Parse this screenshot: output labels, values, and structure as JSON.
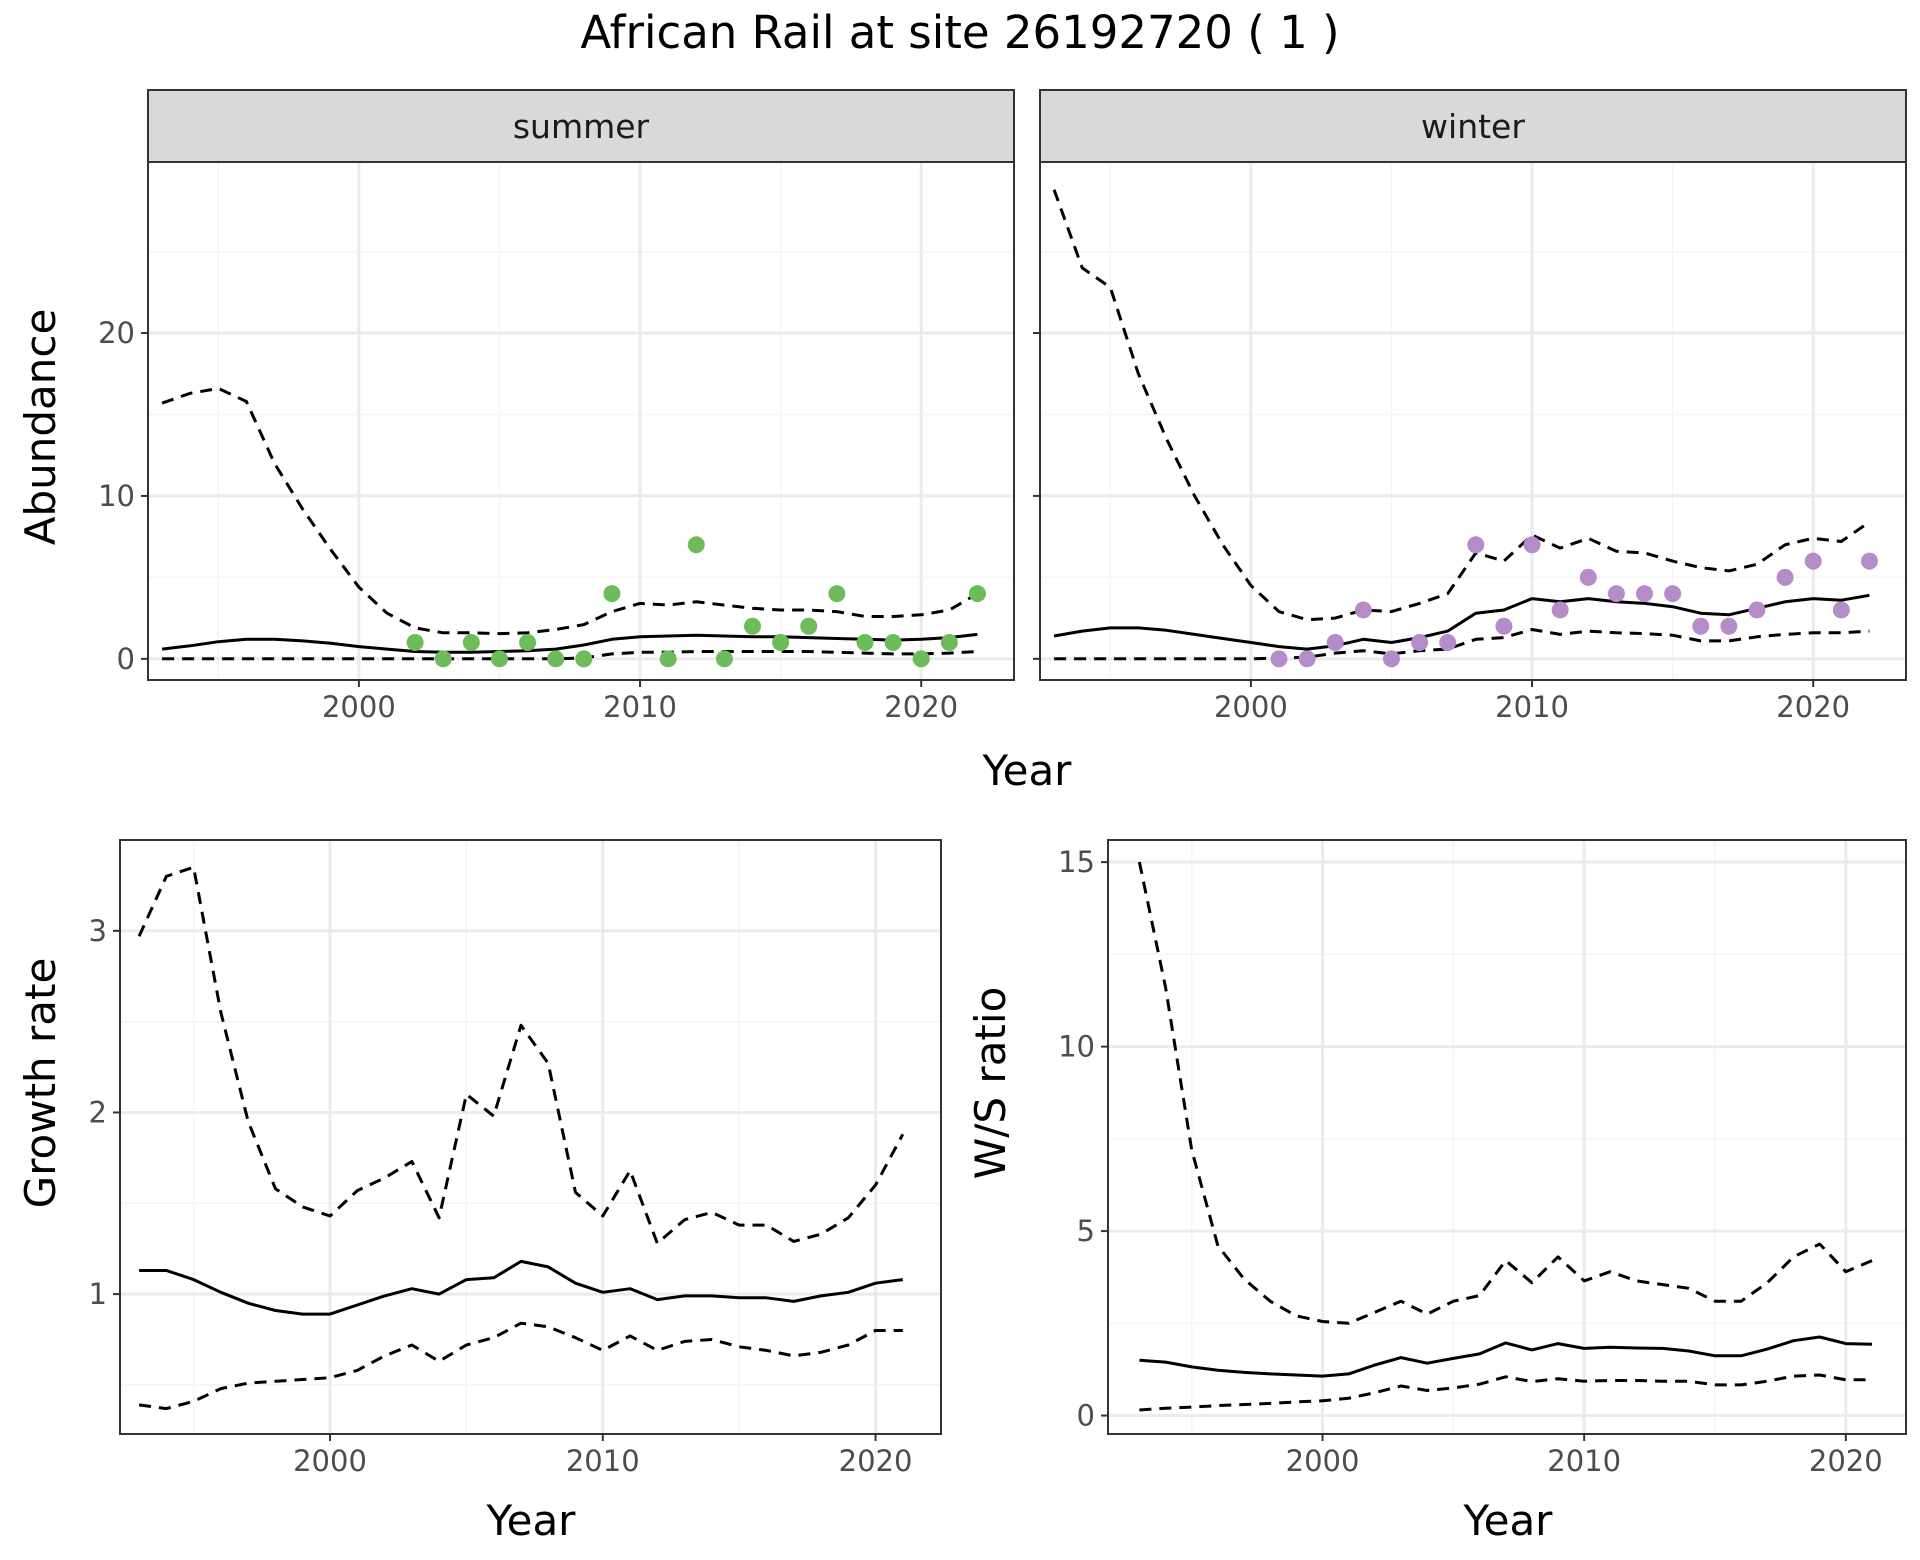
{
  "title": "African Rail at site 26192720 ( 1 )",
  "colors": {
    "summer_points": "#6dbb5a",
    "winter_points": "#b48cc8",
    "lines": "#000000",
    "grid_major": "#ebebeb",
    "grid_minor": "#f4f4f4",
    "strip_fill": "#d9d9d9",
    "panel_border": "#333333"
  },
  "chart_data": [
    {
      "type": "scatter",
      "facet": "summer",
      "xlabel": "Year",
      "ylabel": "Abundance",
      "xlim": [
        1992.5,
        2023.3
      ],
      "ylim": [
        -1.3,
        30.5
      ],
      "xticks": [
        2000,
        2010,
        2020
      ],
      "yticks": [
        0,
        10,
        20
      ],
      "grid": true,
      "points": {
        "x": [
          2002,
          2003,
          2004,
          2005,
          2006,
          2007,
          2008,
          2009,
          2011,
          2012,
          2013,
          2014,
          2015,
          2016,
          2017,
          2018,
          2019,
          2020,
          2021,
          2022
        ],
        "y": [
          1,
          0,
          1,
          0,
          1,
          0,
          0,
          4,
          0,
          7,
          0,
          2,
          1,
          2,
          4,
          1,
          1,
          0,
          1,
          4
        ]
      },
      "x": [
        1993,
        1994,
        1995,
        1996,
        1997,
        1998,
        1999,
        2000,
        2001,
        2002,
        2003,
        2004,
        2005,
        2006,
        2007,
        2008,
        2009,
        2010,
        2011,
        2012,
        2013,
        2014,
        2015,
        2016,
        2017,
        2018,
        2019,
        2020,
        2021,
        2022
      ],
      "series": [
        {
          "style": "solid",
          "values": [
            0.6,
            0.8,
            1.05,
            1.2,
            1.2,
            1.1,
            0.95,
            0.75,
            0.6,
            0.45,
            0.4,
            0.4,
            0.45,
            0.5,
            0.6,
            0.85,
            1.2,
            1.35,
            1.4,
            1.45,
            1.4,
            1.35,
            1.35,
            1.3,
            1.25,
            1.2,
            1.15,
            1.2,
            1.3,
            1.5
          ]
        },
        {
          "style": "dashed",
          "values": [
            15.7,
            16.3,
            16.6,
            15.8,
            12.0,
            9.2,
            6.7,
            4.4,
            2.8,
            1.9,
            1.6,
            1.6,
            1.55,
            1.6,
            1.8,
            2.1,
            2.9,
            3.4,
            3.3,
            3.5,
            3.3,
            3.1,
            3.0,
            3.0,
            2.9,
            2.6,
            2.6,
            2.7,
            3.0,
            4.0
          ]
        },
        {
          "style": "dashed",
          "values": [
            0,
            0,
            0,
            0,
            0,
            0,
            0,
            0,
            0,
            0,
            0,
            0,
            0,
            0,
            0,
            0.05,
            0.3,
            0.4,
            0.4,
            0.45,
            0.45,
            0.45,
            0.45,
            0.45,
            0.4,
            0.35,
            0.3,
            0.3,
            0.35,
            0.45
          ]
        }
      ]
    },
    {
      "type": "scatter",
      "facet": "winter",
      "xlabel": "Year",
      "ylabel": "Abundance",
      "xlim": [
        1992.5,
        2023.3
      ],
      "ylim": [
        -1.3,
        30.5
      ],
      "xticks": [
        2000,
        2010,
        2020
      ],
      "yticks": [
        0,
        10,
        20
      ],
      "grid": true,
      "points": {
        "x": [
          2001,
          2002,
          2003,
          2004,
          2005,
          2006,
          2007,
          2008,
          2009,
          2010,
          2011,
          2012,
          2013,
          2014,
          2015,
          2016,
          2017,
          2018,
          2019,
          2020,
          2021,
          2022
        ],
        "y": [
          0,
          0,
          1,
          3,
          0,
          1,
          1,
          7,
          2,
          7,
          3,
          5,
          4,
          4,
          4,
          2,
          2,
          3,
          5,
          6,
          3,
          6
        ]
      },
      "x": [
        1993,
        1994,
        1995,
        1996,
        1997,
        1998,
        1999,
        2000,
        2001,
        2002,
        2003,
        2004,
        2005,
        2006,
        2007,
        2008,
        2009,
        2010,
        2011,
        2012,
        2013,
        2014,
        2015,
        2016,
        2017,
        2018,
        2019,
        2020,
        2021,
        2022
      ],
      "series": [
        {
          "style": "solid",
          "values": [
            1.4,
            1.7,
            1.9,
            1.9,
            1.75,
            1.5,
            1.25,
            1.0,
            0.75,
            0.6,
            0.8,
            1.2,
            1.0,
            1.3,
            1.7,
            2.8,
            3.0,
            3.7,
            3.5,
            3.7,
            3.5,
            3.4,
            3.2,
            2.8,
            2.7,
            3.1,
            3.5,
            3.7,
            3.6,
            3.9
          ]
        },
        {
          "style": "dashed",
          "values": [
            28.8,
            24.0,
            22.8,
            17.5,
            13.5,
            10.0,
            7.0,
            4.5,
            2.9,
            2.4,
            2.5,
            3.0,
            2.9,
            3.4,
            4.0,
            6.5,
            6.0,
            7.6,
            6.8,
            7.4,
            6.6,
            6.5,
            6.0,
            5.6,
            5.4,
            5.8,
            7.0,
            7.4,
            7.2,
            8.4
          ]
        },
        {
          "style": "dashed",
          "values": [
            0,
            0,
            0,
            0,
            0,
            0,
            0,
            0,
            0.05,
            0.1,
            0.35,
            0.5,
            0.3,
            0.5,
            0.6,
            1.2,
            1.3,
            1.8,
            1.5,
            1.7,
            1.6,
            1.55,
            1.45,
            1.1,
            1.1,
            1.35,
            1.5,
            1.6,
            1.6,
            1.7
          ]
        }
      ]
    },
    {
      "type": "line",
      "xlabel": "Year",
      "ylabel": "Growth rate",
      "xlim": [
        1992.3,
        2022.4
      ],
      "ylim": [
        0.23,
        3.5
      ],
      "xticks": [
        2000,
        2010,
        2020
      ],
      "yticks": [
        1,
        2,
        3
      ],
      "grid": true,
      "x": [
        1993,
        1994,
        1995,
        1996,
        1997,
        1998,
        1999,
        2000,
        2001,
        2002,
        2003,
        2004,
        2005,
        2006,
        2007,
        2008,
        2009,
        2010,
        2011,
        2012,
        2013,
        2014,
        2015,
        2016,
        2017,
        2018,
        2019,
        2020,
        2021
      ],
      "series": [
        {
          "style": "solid",
          "values": [
            1.13,
            1.13,
            1.08,
            1.01,
            0.95,
            0.91,
            0.89,
            0.89,
            0.94,
            0.99,
            1.03,
            1.0,
            1.08,
            1.09,
            1.18,
            1.15,
            1.06,
            1.01,
            1.03,
            0.97,
            0.99,
            0.99,
            0.98,
            0.98,
            0.96,
            0.99,
            1.01,
            1.06,
            1.08
          ]
        },
        {
          "style": "dashed",
          "values": [
            2.97,
            3.3,
            3.35,
            2.55,
            1.95,
            1.58,
            1.48,
            1.43,
            1.57,
            1.64,
            1.73,
            1.42,
            2.1,
            1.98,
            2.48,
            2.27,
            1.56,
            1.43,
            1.68,
            1.28,
            1.41,
            1.45,
            1.38,
            1.38,
            1.29,
            1.33,
            1.42,
            1.6,
            1.88
          ]
        },
        {
          "style": "dashed",
          "values": [
            0.39,
            0.37,
            0.41,
            0.48,
            0.51,
            0.52,
            0.53,
            0.54,
            0.58,
            0.66,
            0.72,
            0.63,
            0.72,
            0.76,
            0.84,
            0.82,
            0.76,
            0.69,
            0.77,
            0.69,
            0.74,
            0.75,
            0.71,
            0.69,
            0.66,
            0.68,
            0.72,
            0.8,
            0.8
          ]
        }
      ]
    },
    {
      "type": "line",
      "xlabel": "Year",
      "ylabel": "W/S ratio",
      "xlim": [
        1991.8,
        2022.3
      ],
      "ylim": [
        -0.5,
        15.6
      ],
      "xticks": [
        2000,
        2010,
        2020
      ],
      "yticks": [
        0,
        5,
        10,
        15
      ],
      "grid": true,
      "x": [
        1993,
        1994,
        1995,
        1996,
        1997,
        1998,
        1999,
        2000,
        2001,
        2002,
        2003,
        2004,
        2005,
        2006,
        2007,
        2008,
        2009,
        2010,
        2011,
        2012,
        2013,
        2014,
        2015,
        2016,
        2017,
        2018,
        2019,
        2020,
        2021
      ],
      "series": [
        {
          "style": "solid",
          "values": [
            1.5,
            1.45,
            1.32,
            1.23,
            1.17,
            1.13,
            1.1,
            1.07,
            1.13,
            1.37,
            1.57,
            1.42,
            1.55,
            1.67,
            1.97,
            1.78,
            1.95,
            1.82,
            1.85,
            1.83,
            1.82,
            1.75,
            1.62,
            1.62,
            1.8,
            2.03,
            2.13,
            1.95,
            1.93
          ]
        },
        {
          "style": "dashed",
          "values": [
            15.0,
            11.6,
            7.2,
            4.6,
            3.7,
            3.1,
            2.7,
            2.55,
            2.5,
            2.8,
            3.1,
            2.75,
            3.1,
            3.25,
            4.2,
            3.6,
            4.3,
            3.65,
            3.9,
            3.65,
            3.55,
            3.45,
            3.1,
            3.1,
            3.6,
            4.3,
            4.65,
            3.9,
            4.2
          ]
        },
        {
          "style": "dashed",
          "values": [
            0.15,
            0.2,
            0.23,
            0.27,
            0.3,
            0.33,
            0.37,
            0.4,
            0.47,
            0.62,
            0.8,
            0.68,
            0.75,
            0.85,
            1.05,
            0.92,
            1.0,
            0.93,
            0.95,
            0.95,
            0.93,
            0.93,
            0.83,
            0.83,
            0.93,
            1.07,
            1.1,
            0.97,
            0.97
          ]
        }
      ]
    }
  ],
  "facets": {
    "summer": "summer",
    "winter": "winter"
  }
}
